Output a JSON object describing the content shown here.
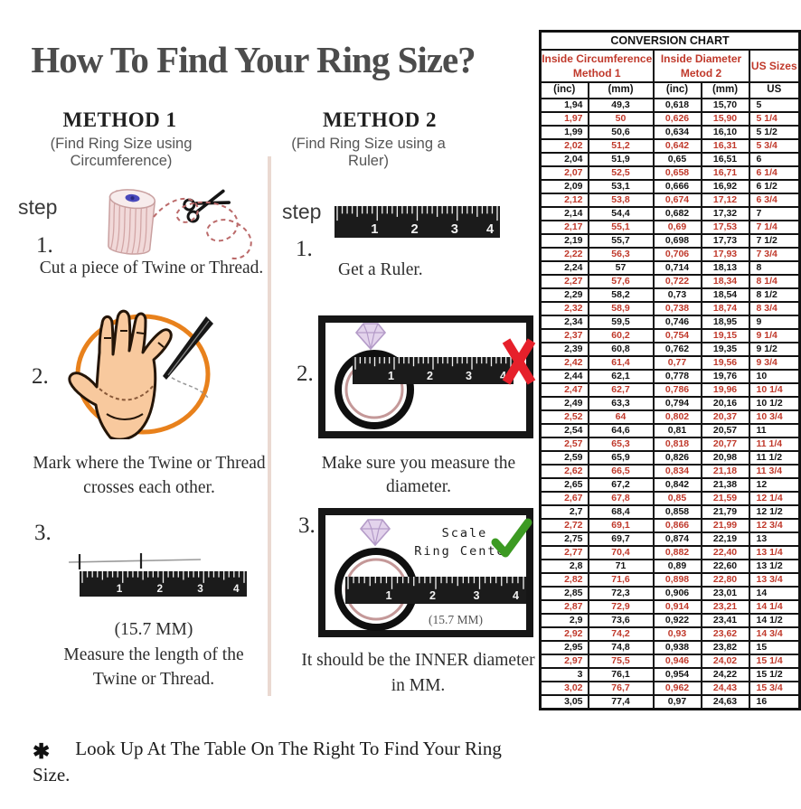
{
  "title": "How To Find Your Ring Size?",
  "footer": {
    "asterisk": "✱",
    "text": "Look Up At The Table On The Right To Find Your Ring Size."
  },
  "ruler_numbers": [
    "1",
    "2",
    "3",
    "4"
  ],
  "methods": {
    "m1": {
      "heading": "METHOD 1",
      "subtitle": "(Find Ring Size using Circumference)",
      "step_label": "step",
      "step1_num": "1.",
      "step1_caption": "Cut a piece of  Twine or Thread.",
      "step2_num": "2.",
      "step2_line1": "Mark where the Twine or Thread",
      "step2_line2": "crosses each other.",
      "step3_num": "3.",
      "step3_measure": "(15.7 MM)",
      "step3_line1": "Measure the length of the",
      "step3_line2": "Twine or Thread."
    },
    "m2": {
      "heading": "METHOD 2",
      "subtitle": "(Find Ring Size using a Ruler)",
      "step_label": "step",
      "step1_num": "1.",
      "step1_caption": "Get a Ruler.",
      "step2_num": "2.",
      "step2_caption": "Make sure you measure the diameter.",
      "step3_num": "3.",
      "step3_scale_line1": "Scale",
      "step3_scale_line2": "Ring Center",
      "step3_measure": "(15.7 MM)",
      "step3_line1": "It should be the INNER diameter",
      "step3_line2": "in MM."
    }
  },
  "conversion_table": {
    "title": "CONVERSION CHART",
    "groups": [
      {
        "line1": "Inside Circumference",
        "line2": "Method 1"
      },
      {
        "line1": "Inside Diameter",
        "line2": "Metod 2"
      },
      {
        "label": "US Sizes"
      }
    ],
    "columns": [
      "(inc)",
      "(mm)",
      "(inc)",
      "(mm)",
      "US"
    ],
    "rows": [
      [
        "1,94",
        "49,3",
        "0,618",
        "15,70",
        "5"
      ],
      [
        "1,97",
        "50",
        "0,626",
        "15,90",
        "5 1/4"
      ],
      [
        "1,99",
        "50,6",
        "0,634",
        "16,10",
        "5 1/2"
      ],
      [
        "2,02",
        "51,2",
        "0,642",
        "16,31",
        "5 3/4"
      ],
      [
        "2,04",
        "51,9",
        "0,65",
        "16,51",
        "6"
      ],
      [
        "2,07",
        "52,5",
        "0,658",
        "16,71",
        "6 1/4"
      ],
      [
        "2,09",
        "53,1",
        "0,666",
        "16,92",
        "6 1/2"
      ],
      [
        "2,12",
        "53,8",
        "0,674",
        "17,12",
        "6 3/4"
      ],
      [
        "2,14",
        "54,4",
        "0,682",
        "17,32",
        "7"
      ],
      [
        "2,17",
        "55,1",
        "0,69",
        "17,53",
        "7 1/4"
      ],
      [
        "2,19",
        "55,7",
        "0,698",
        "17,73",
        "7 1/2"
      ],
      [
        "2,22",
        "56,3",
        "0,706",
        "17,93",
        "7 3/4"
      ],
      [
        "2,24",
        "57",
        "0,714",
        "18,13",
        "8"
      ],
      [
        "2,27",
        "57,6",
        "0,722",
        "18,34",
        "8 1/4"
      ],
      [
        "2,29",
        "58,2",
        "0,73",
        "18,54",
        "8 1/2"
      ],
      [
        "2,32",
        "58,9",
        "0,738",
        "18,74",
        "8 3/4"
      ],
      [
        "2,34",
        "59,5",
        "0,746",
        "18,95",
        "9"
      ],
      [
        "2,37",
        "60,2",
        "0,754",
        "19,15",
        "9 1/4"
      ],
      [
        "2,39",
        "60,8",
        "0,762",
        "19,35",
        "9 1/2"
      ],
      [
        "2,42",
        "61,4",
        "0,77",
        "19,56",
        "9 3/4"
      ],
      [
        "2,44",
        "62,1",
        "0,778",
        "19,76",
        "10"
      ],
      [
        "2,47",
        "62,7",
        "0,786",
        "19,96",
        "10 1/4"
      ],
      [
        "2,49",
        "63,3",
        "0,794",
        "20,16",
        "10 1/2"
      ],
      [
        "2,52",
        "64",
        "0,802",
        "20,37",
        "10 3/4"
      ],
      [
        "2,54",
        "64,6",
        "0,81",
        "20,57",
        "11"
      ],
      [
        "2,57",
        "65,3",
        "0,818",
        "20,77",
        "11 1/4"
      ],
      [
        "2,59",
        "65,9",
        "0,826",
        "20,98",
        "11 1/2"
      ],
      [
        "2,62",
        "66,5",
        "0,834",
        "21,18",
        "11 3/4"
      ],
      [
        "2,65",
        "67,2",
        "0,842",
        "21,38",
        "12"
      ],
      [
        "2,67",
        "67,8",
        "0,85",
        "21,59",
        "12 1/4"
      ],
      [
        "2,7",
        "68,4",
        "0,858",
        "21,79",
        "12 1/2"
      ],
      [
        "2,72",
        "69,1",
        "0,866",
        "21,99",
        "12 3/4"
      ],
      [
        "2,75",
        "69,7",
        "0,874",
        "22,19",
        "13"
      ],
      [
        "2,77",
        "70,4",
        "0,882",
        "22,40",
        "13 1/4"
      ],
      [
        "2,8",
        "71",
        "0,89",
        "22,60",
        "13 1/2"
      ],
      [
        "2,82",
        "71,6",
        "0,898",
        "22,80",
        "13 3/4"
      ],
      [
        "2,85",
        "72,3",
        "0,906",
        "23,01",
        "14"
      ],
      [
        "2,87",
        "72,9",
        "0,914",
        "23,21",
        "14 1/4"
      ],
      [
        "2,9",
        "73,6",
        "0,922",
        "23,41",
        "14 1/2"
      ],
      [
        "2,92",
        "74,2",
        "0,93",
        "23,62",
        "14 3/4"
      ],
      [
        "2,95",
        "74,8",
        "0,938",
        "23,82",
        "15"
      ],
      [
        "2,97",
        "75,5",
        "0,946",
        "24,02",
        "15 1/4"
      ],
      [
        "3",
        "76,1",
        "0,954",
        "24,22",
        "15 1/2"
      ],
      [
        "3,02",
        "76,7",
        "0,962",
        "24,43",
        "15 3/4"
      ],
      [
        "3,05",
        "77,4",
        "0,97",
        "24,63",
        "16"
      ]
    ]
  },
  "colors": {
    "accent_red": "#c0392b",
    "x_red": "#e6202b",
    "check_green": "#3c9a22",
    "circle_orange": "#e8811c",
    "thread_pink": "#bb6a6a",
    "skin": "#f8c99e",
    "diamond_purple": "#e3d3ec",
    "ruler_black": "#1b1b1b",
    "divider_pink": "#ead9d1"
  }
}
